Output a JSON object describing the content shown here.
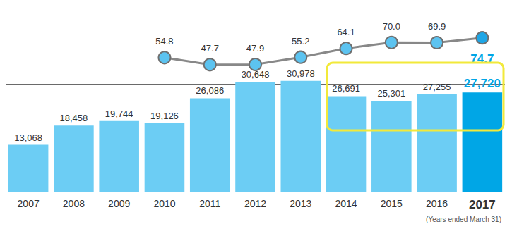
{
  "chart_data": {
    "type": "bar",
    "subtitle": "(Years ended March 31)",
    "categories": [
      "2007",
      "2008",
      "2009",
      "2010",
      "2011",
      "2012",
      "2013",
      "2014",
      "2015",
      "2016",
      "2017"
    ],
    "series": [
      {
        "type": "bar",
        "colors": [
          "#6ccdf4",
          "#6ccdf4",
          "#6ccdf4",
          "#6ccdf4",
          "#6ccdf4",
          "#6ccdf4",
          "#6ccdf4",
          "#6ccdf4",
          "#6ccdf4",
          "#6ccdf4",
          "#00a6e6"
        ],
        "values": [
          13068,
          18458,
          19744,
          19126,
          26086,
          30648,
          30978,
          26691,
          25301,
          27255,
          27720
        ],
        "value_labels": [
          "13,068",
          "18,458",
          "19,744",
          "19,126",
          "26,086",
          "30,648",
          "30,978",
          "26,691",
          "25,301",
          "27,255",
          "27,720"
        ]
      },
      {
        "type": "line",
        "axis": "y2",
        "color": "#888888",
        "marker": "circle",
        "values": [
          null,
          null,
          null,
          54.8,
          47.7,
          47.9,
          55.2,
          64.1,
          70.0,
          69.9,
          74.7
        ],
        "value_labels": [
          null,
          null,
          null,
          "54.8",
          "47.7",
          "47.9",
          "55.2",
          "64.1",
          "70.0",
          "69.9",
          "74.7"
        ]
      }
    ],
    "ylim": [
      0,
      50000
    ],
    "yticks": [
      0,
      10000,
      20000,
      30000,
      40000,
      50000
    ],
    "y2lim": [
      -80,
      100
    ],
    "y2ticks": [
      -80,
      -60,
      -40,
      -20,
      0,
      20,
      40,
      60,
      80,
      100
    ],
    "grid": true,
    "data_labels": true,
    "tick_labels": "x"
  }
}
